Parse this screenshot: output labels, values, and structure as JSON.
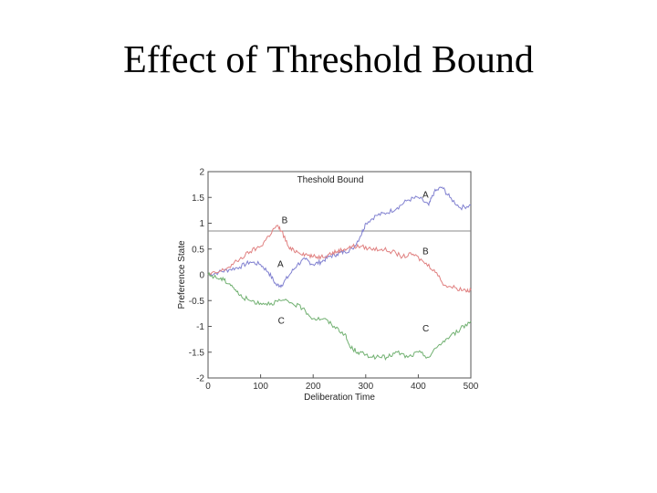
{
  "slide": {
    "title": "Effect of Threshold Bound"
  },
  "chart_data": {
    "type": "line",
    "title": "Theshold Bound",
    "xlabel": "Deliberation Time",
    "ylabel": "Preference State",
    "xlim": [
      0,
      500
    ],
    "ylim": [
      -2,
      2
    ],
    "xticks": [
      0,
      100,
      200,
      300,
      400,
      500
    ],
    "yticks": [
      -2,
      -1.5,
      -1,
      -0.5,
      0,
      0.5,
      1,
      1.5,
      2
    ],
    "grid": false,
    "threshold": 0.85,
    "series": [
      {
        "color": "#8080d0",
        "x": [
          0,
          20,
          40,
          60,
          80,
          100,
          115,
          130,
          140,
          155,
          170,
          185,
          200,
          215,
          230,
          245,
          260,
          275,
          290,
          300,
          320,
          340,
          360,
          380,
          400,
          420,
          430,
          445,
          460,
          480,
          500
        ],
        "values": [
          0.0,
          0.05,
          0.1,
          0.15,
          0.25,
          0.2,
          0.05,
          -0.2,
          -0.2,
          0.0,
          0.2,
          0.3,
          0.2,
          0.25,
          0.35,
          0.4,
          0.45,
          0.5,
          0.75,
          1.0,
          1.15,
          1.2,
          1.3,
          1.45,
          1.5,
          1.35,
          1.6,
          1.7,
          1.5,
          1.3,
          1.35
        ]
      },
      {
        "color": "#e08080",
        "x": [
          0,
          20,
          40,
          60,
          80,
          100,
          115,
          130,
          140,
          155,
          170,
          185,
          200,
          215,
          230,
          245,
          260,
          275,
          290,
          310,
          330,
          350,
          370,
          390,
          410,
          430,
          450,
          470,
          490,
          500
        ],
        "values": [
          0.0,
          0.05,
          0.15,
          0.3,
          0.45,
          0.55,
          0.75,
          0.95,
          0.85,
          0.5,
          0.45,
          0.4,
          0.35,
          0.35,
          0.4,
          0.45,
          0.5,
          0.55,
          0.55,
          0.5,
          0.5,
          0.45,
          0.35,
          0.4,
          0.25,
          0.1,
          -0.2,
          -0.25,
          -0.3,
          -0.3
        ]
      },
      {
        "color": "#70b070",
        "x": [
          0,
          15,
          30,
          45,
          60,
          80,
          100,
          120,
          140,
          160,
          180,
          200,
          220,
          240,
          260,
          270,
          285,
          300,
          320,
          340,
          360,
          380,
          400,
          420,
          440,
          460,
          480,
          500
        ],
        "values": [
          0.0,
          -0.05,
          -0.1,
          -0.2,
          -0.4,
          -0.5,
          -0.55,
          -0.55,
          -0.5,
          -0.55,
          -0.65,
          -0.85,
          -0.85,
          -1.0,
          -1.15,
          -1.4,
          -1.5,
          -1.55,
          -1.6,
          -1.6,
          -1.5,
          -1.6,
          -1.5,
          -1.6,
          -1.35,
          -1.2,
          -1.05,
          -0.9
        ]
      }
    ],
    "annotations": [
      {
        "text": "B",
        "x": 140,
        "y": 1.0
      },
      {
        "text": "A",
        "x": 132,
        "y": 0.15
      },
      {
        "text": "C",
        "x": 133,
        "y": -0.95
      },
      {
        "text": "A",
        "x": 408,
        "y": 1.5
      },
      {
        "text": "B",
        "x": 408,
        "y": 0.4
      },
      {
        "text": "C",
        "x": 408,
        "y": -1.1
      }
    ]
  }
}
